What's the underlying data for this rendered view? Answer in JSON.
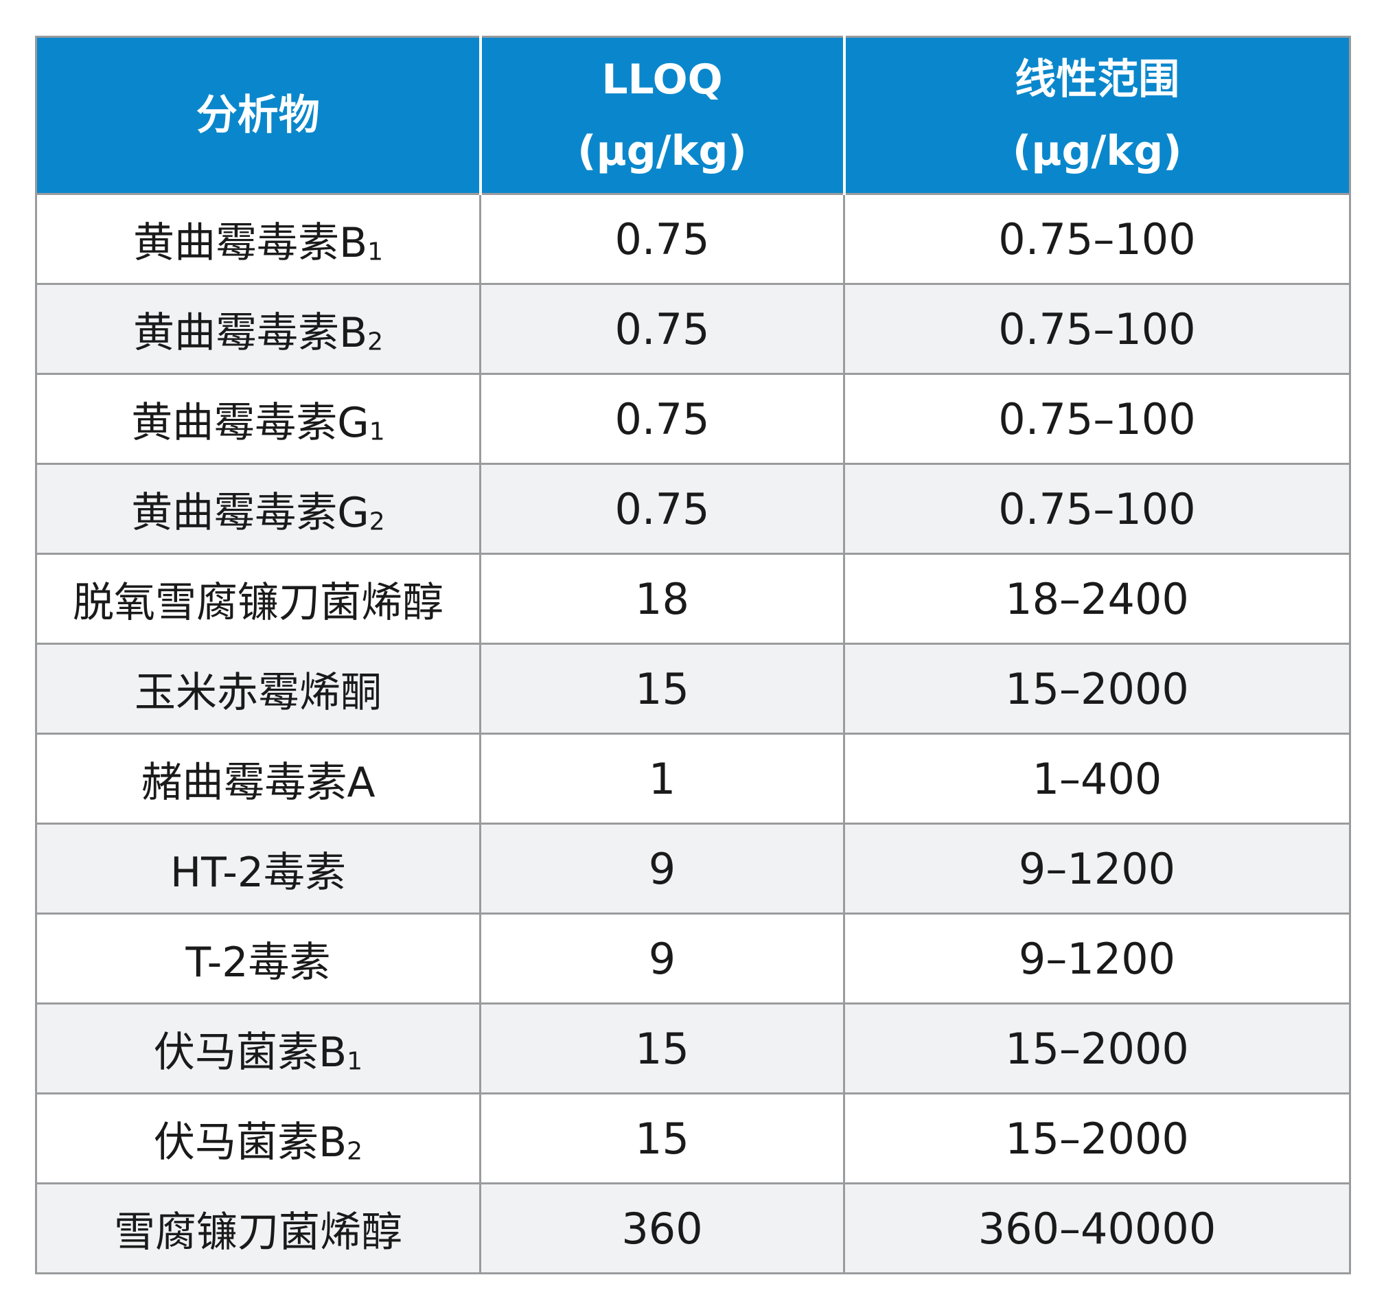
{
  "table": {
    "headers": [
      {
        "line1": "分析物",
        "line2": ""
      },
      {
        "line1": "LLOQ",
        "line2": "(μg/kg)"
      },
      {
        "line1": "线性范围",
        "line2": "(μg/kg)"
      }
    ],
    "rows": [
      {
        "name": "黄曲霉毒素B",
        "sub": "1",
        "lloq": "0.75",
        "range": "0.75–100"
      },
      {
        "name": "黄曲霉毒素B",
        "sub": "2",
        "lloq": "0.75",
        "range": "0.75–100"
      },
      {
        "name": "黄曲霉毒素G",
        "sub": "1",
        "lloq": "0.75",
        "range": "0.75–100"
      },
      {
        "name": "黄曲霉毒素G",
        "sub": "2",
        "lloq": "0.75",
        "range": "0.75–100"
      },
      {
        "name": "脱氧雪腐镰刀菌烯醇",
        "sub": "",
        "lloq": "18",
        "range": "18–2400"
      },
      {
        "name": "玉米赤霉烯酮",
        "sub": "",
        "lloq": "15",
        "range": "15–2000"
      },
      {
        "name": "赭曲霉毒素A",
        "sub": "",
        "lloq": "1",
        "range": "1–400"
      },
      {
        "name": "HT-2毒素",
        "sub": "",
        "lloq": "9",
        "range": "9–1200"
      },
      {
        "name": "T-2毒素",
        "sub": "",
        "lloq": "9",
        "range": "9–1200"
      },
      {
        "name": "伏马菌素B",
        "sub": "1",
        "lloq": "15",
        "range": "15–2000"
      },
      {
        "name": "伏马菌素B",
        "sub": "2",
        "lloq": "15",
        "range": "15–2000"
      },
      {
        "name": "雪腐镰刀菌烯醇",
        "sub": "",
        "lloq": "360",
        "range": "360–40000"
      }
    ]
  },
  "colors": {
    "header_bg": "#0a87cc",
    "header_text": "#ffffff",
    "row_alt_bg": "#f1f2f4",
    "border": "#9a9b9d"
  }
}
